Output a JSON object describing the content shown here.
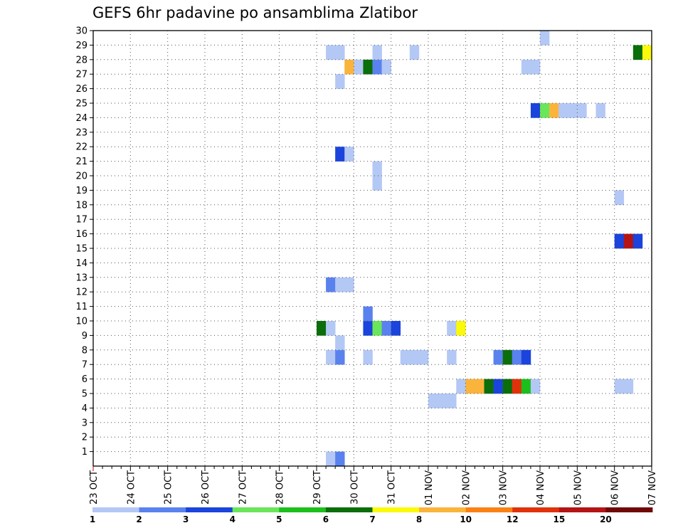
{
  "chart_data": {
    "type": "heatmap",
    "title": "GEFS 6hr padavine po ansamblima Zlatibor",
    "xlabel": "",
    "ylabel": "",
    "x_ticks": [
      "23 OCT",
      "24 OCT",
      "25 OCT",
      "26 OCT",
      "27 OCT",
      "28 OCT",
      "29 OCT",
      "30 OCT",
      "31 OCT",
      "01 NOV",
      "02 NOV",
      "03 NOV",
      "04 NOV",
      "05 NOV",
      "06 NOV",
      "07 NOV"
    ],
    "xlim_days": [
      0,
      15
    ],
    "y_ticks": [
      1,
      2,
      3,
      4,
      5,
      6,
      7,
      8,
      9,
      10,
      11,
      12,
      13,
      14,
      15,
      16,
      17,
      18,
      19,
      20,
      21,
      22,
      23,
      24,
      25,
      26,
      27,
      28,
      29,
      30
    ],
    "ylim": [
      0,
      30
    ],
    "time_step_hours": 6,
    "grid": true,
    "legend": {
      "position": "bottom",
      "labels": [
        "1",
        "2",
        "3",
        "4",
        "5",
        "6",
        "7",
        "8",
        "10",
        "12",
        "15",
        "20"
      ],
      "colors": [
        "#b4c8f5",
        "#5a82ee",
        "#1a44dc",
        "#6ae65a",
        "#1cbf1c",
        "#0a6e0a",
        "#fafa0a",
        "#fab43c",
        "#fa8214",
        "#e0320a",
        "#b41414",
        "#700808"
      ]
    },
    "cell_note": "cells: day = days after 23 OCT 00Z (0.25 per 6hr step), member = ensemble member, level = colour class index (0 = 1-2 mm, 11 = >20 mm)",
    "cells": [
      {
        "day": 6.25,
        "member": 0,
        "level": 0
      },
      {
        "day": 6.5,
        "member": 0,
        "level": 1
      },
      {
        "day": 9.0,
        "member": 4,
        "level": 0
      },
      {
        "day": 9.25,
        "member": 4,
        "level": 0
      },
      {
        "day": 9.5,
        "member": 4,
        "level": 0
      },
      {
        "day": 9.75,
        "member": 5,
        "level": 0
      },
      {
        "day": 10.0,
        "member": 5,
        "level": 7
      },
      {
        "day": 10.25,
        "member": 5,
        "level": 7
      },
      {
        "day": 10.5,
        "member": 5,
        "level": 5
      },
      {
        "day": 10.75,
        "member": 5,
        "level": 2
      },
      {
        "day": 11.0,
        "member": 5,
        "level": 5
      },
      {
        "day": 11.25,
        "member": 5,
        "level": 9
      },
      {
        "day": 11.5,
        "member": 5,
        "level": 4
      },
      {
        "day": 11.75,
        "member": 5,
        "level": 0
      },
      {
        "day": 14.0,
        "member": 5,
        "level": 0
      },
      {
        "day": 14.25,
        "member": 5,
        "level": 0
      },
      {
        "day": 6.25,
        "member": 7,
        "level": 0
      },
      {
        "day": 6.5,
        "member": 7,
        "level": 1
      },
      {
        "day": 7.25,
        "member": 7,
        "level": 0
      },
      {
        "day": 8.25,
        "member": 7,
        "level": 0
      },
      {
        "day": 8.5,
        "member": 7,
        "level": 0
      },
      {
        "day": 8.75,
        "member": 7,
        "level": 0
      },
      {
        "day": 9.5,
        "member": 7,
        "level": 0
      },
      {
        "day": 10.75,
        "member": 7,
        "level": 1
      },
      {
        "day": 11.0,
        "member": 7,
        "level": 5
      },
      {
        "day": 11.25,
        "member": 7,
        "level": 1
      },
      {
        "day": 11.5,
        "member": 7,
        "level": 2
      },
      {
        "day": 6.5,
        "member": 8,
        "level": 0
      },
      {
        "day": 6.0,
        "member": 9,
        "level": 5
      },
      {
        "day": 6.25,
        "member": 9,
        "level": 0
      },
      {
        "day": 7.25,
        "member": 9,
        "level": 2
      },
      {
        "day": 7.5,
        "member": 9,
        "level": 3
      },
      {
        "day": 7.75,
        "member": 9,
        "level": 1
      },
      {
        "day": 8.0,
        "member": 9,
        "level": 2
      },
      {
        "day": 9.5,
        "member": 9,
        "level": 0
      },
      {
        "day": 9.75,
        "member": 9,
        "level": 6
      },
      {
        "day": 7.25,
        "member": 10,
        "level": 1
      },
      {
        "day": 6.25,
        "member": 12,
        "level": 1
      },
      {
        "day": 6.5,
        "member": 12,
        "level": 0
      },
      {
        "day": 6.75,
        "member": 12,
        "level": 0
      },
      {
        "day": 14.0,
        "member": 15,
        "level": 2
      },
      {
        "day": 14.25,
        "member": 15,
        "level": 10
      },
      {
        "day": 14.5,
        "member": 15,
        "level": 2
      },
      {
        "day": 14.0,
        "member": 18,
        "level": 0
      },
      {
        "day": 7.5,
        "member": 19,
        "level": 0
      },
      {
        "day": 7.5,
        "member": 20,
        "level": 0
      },
      {
        "day": 6.5,
        "member": 21,
        "level": 2
      },
      {
        "day": 6.75,
        "member": 21,
        "level": 0
      },
      {
        "day": 11.75,
        "member": 24,
        "level": 2
      },
      {
        "day": 12.0,
        "member": 24,
        "level": 3
      },
      {
        "day": 12.25,
        "member": 24,
        "level": 7
      },
      {
        "day": 12.5,
        "member": 24,
        "level": 0
      },
      {
        "day": 12.75,
        "member": 24,
        "level": 0
      },
      {
        "day": 13.0,
        "member": 24,
        "level": 0
      },
      {
        "day": 13.5,
        "member": 24,
        "level": 0
      },
      {
        "day": 6.5,
        "member": 26,
        "level": 0
      },
      {
        "day": 6.75,
        "member": 27,
        "level": 7
      },
      {
        "day": 7.0,
        "member": 27,
        "level": 0
      },
      {
        "day": 7.25,
        "member": 27,
        "level": 5
      },
      {
        "day": 7.5,
        "member": 27,
        "level": 1
      },
      {
        "day": 7.75,
        "member": 27,
        "level": 0
      },
      {
        "day": 11.5,
        "member": 27,
        "level": 0
      },
      {
        "day": 11.75,
        "member": 27,
        "level": 0
      },
      {
        "day": 6.25,
        "member": 28,
        "level": 0
      },
      {
        "day": 6.5,
        "member": 28,
        "level": 0
      },
      {
        "day": 7.5,
        "member": 28,
        "level": 0
      },
      {
        "day": 8.5,
        "member": 28,
        "level": 0
      },
      {
        "day": 14.5,
        "member": 28,
        "level": 5
      },
      {
        "day": 14.75,
        "member": 28,
        "level": 6
      },
      {
        "day": 12.0,
        "member": 29,
        "level": 0
      }
    ]
  }
}
